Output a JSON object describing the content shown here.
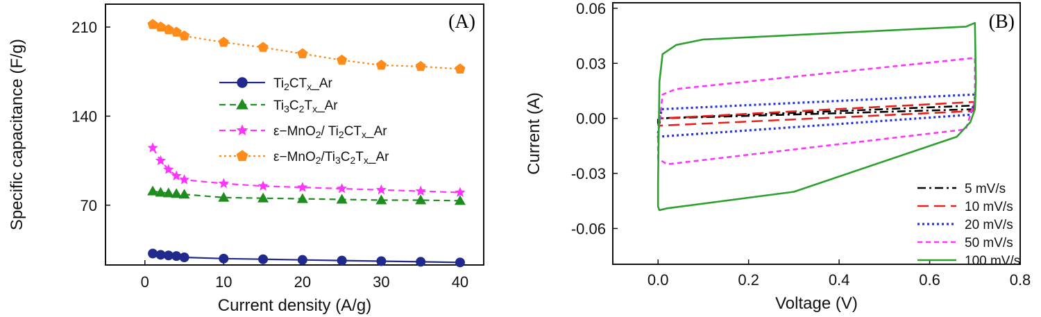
{
  "chart_data": [
    {
      "type": "line",
      "panel_label": "(A)",
      "xlabel": "Current density (A/g)",
      "ylabel": "Specific capacitance (F/g)",
      "xlim": [
        -5,
        43
      ],
      "ylim": [
        23,
        228
      ],
      "xticks": [
        0,
        10,
        20,
        30,
        40
      ],
      "yticks": [
        70,
        140,
        210
      ],
      "legend_position": "center-right",
      "x": [
        1,
        2,
        3,
        4,
        5,
        10,
        15,
        20,
        25,
        30,
        35,
        40
      ],
      "series": [
        {
          "name_parts": [
            [
              "Ti",
              "n"
            ],
            [
              "2",
              "sub"
            ],
            [
              "CT",
              "n"
            ],
            [
              "x",
              "sub"
            ],
            [
              "_Ar",
              "n"
            ]
          ],
          "color": "#1f2a8c",
          "marker": "circle",
          "dash": "solid",
          "values": [
            32,
            31,
            30.5,
            30,
            29,
            28,
            27.5,
            27,
            26.5,
            26,
            25.5,
            25
          ]
        },
        {
          "name_parts": [
            [
              "Ti",
              "n"
            ],
            [
              "3",
              "sub"
            ],
            [
              "C",
              "n"
            ],
            [
              "2",
              "sub"
            ],
            [
              "T",
              "n"
            ],
            [
              "x",
              "sub"
            ],
            [
              "_Ar",
              "n"
            ]
          ],
          "color": "#1e8c1e",
          "marker": "triangle",
          "dash": "dashed",
          "values": [
            81,
            80,
            79.5,
            79,
            78.5,
            76,
            75.5,
            75,
            74.5,
            74,
            74,
            73.5
          ]
        },
        {
          "name_parts": [
            [
              "ε−MnO",
              "n"
            ],
            [
              "2",
              "sub"
            ],
            [
              "/ Ti",
              "n"
            ],
            [
              "2",
              "sub"
            ],
            [
              "CT",
              "n"
            ],
            [
              "x",
              "sub"
            ],
            [
              "_Ar",
              "n"
            ]
          ],
          "color": "#ff33ff",
          "marker": "star",
          "dash": "dashed",
          "values": [
            115,
            105,
            98,
            93,
            90,
            87,
            85,
            84,
            83,
            82,
            81,
            80
          ]
        },
        {
          "name_parts": [
            [
              "ε−MnO",
              "n"
            ],
            [
              "2",
              "sub"
            ],
            [
              "/Ti",
              "n"
            ],
            [
              "3",
              "sub"
            ],
            [
              "C",
              "n"
            ],
            [
              "2",
              "sub"
            ],
            [
              "T",
              "n"
            ],
            [
              "x",
              "sub"
            ],
            [
              "_Ar",
              "n"
            ]
          ],
          "color": "#ff8c1a",
          "marker": "pentagon",
          "dash": "dotted",
          "values": [
            212,
            210,
            208,
            206,
            203,
            198,
            194,
            189,
            184,
            180,
            179,
            177
          ]
        }
      ]
    },
    {
      "type": "line",
      "panel_label": "(B)",
      "xlabel": "Voltage (V)",
      "ylabel": "Current (A)",
      "xlim": [
        -0.1,
        0.8
      ],
      "ylim": [
        -0.0795,
        0.063
      ],
      "xticks": [
        "0.0",
        "0.2",
        "0.4",
        "0.6",
        "0.8"
      ],
      "yticks": [
        "0.06",
        "0.03",
        "0.00",
        "-0.03",
        "-0.06"
      ],
      "legend_position": "bottom-right",
      "series": [
        {
          "name": "5 mV/s",
          "color": "#000000",
          "dash": "dashdot",
          "x": [
            0,
            0.005,
            0.7,
            0.7,
            0.695,
            0,
            0
          ],
          "y": [
            -0.003,
            0.0,
            0.005,
            0.007,
            0.007,
            0.0,
            -0.003
          ]
        },
        {
          "name": "10 mV/s",
          "color": "#e8201c",
          "dash": "longdash",
          "x": [
            0,
            0.005,
            0.7,
            0.7,
            0.695,
            0,
            0
          ],
          "y": [
            -0.004,
            0.0,
            0.009,
            0.011,
            0.004,
            -0.004,
            -0.004
          ]
        },
        {
          "name": "20 mV/s",
          "color": "#2233dd",
          "dash": "dotted",
          "x": [
            0,
            0.008,
            0.7,
            0.7,
            0.69,
            0,
            0
          ],
          "y": [
            -0.008,
            0.005,
            0.013,
            0.01,
            0.002,
            -0.01,
            -0.008
          ]
        },
        {
          "name": "50 mV/s",
          "color": "#ff33ff",
          "dash": "shortdash",
          "x": [
            0,
            0.01,
            0.04,
            0.7,
            0.7,
            0.68,
            0.02,
            0,
            0
          ],
          "y": [
            -0.01,
            0.013,
            0.016,
            0.033,
            0.01,
            -0.006,
            -0.025,
            -0.022,
            -0.01
          ]
        },
        {
          "name": "100 mV/s",
          "color": "#2ea02e",
          "dash": "solid",
          "x": [
            0,
            0.003,
            0.01,
            0.04,
            0.1,
            0.68,
            0.7,
            0.702,
            0.7,
            0.69,
            0.66,
            0.3,
            0.02,
            0.003,
            0,
            0
          ],
          "y": [
            -0.035,
            0.02,
            0.035,
            0.04,
            0.043,
            0.05,
            0.052,
            0.02,
            0.005,
            -0.002,
            -0.01,
            -0.04,
            -0.049,
            -0.05,
            -0.048,
            -0.035
          ]
        }
      ]
    }
  ]
}
